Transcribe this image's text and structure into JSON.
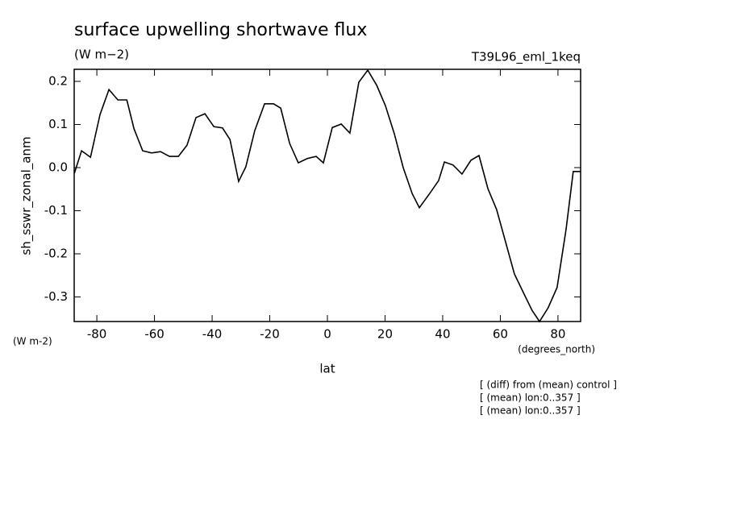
{
  "chart_data": {
    "type": "line",
    "title": "surface upwelling shortwave flux",
    "units": "(W m−2)",
    "run": "T39L96_eml_1keq",
    "y_label": "sh_sswr_zonal_anm",
    "y_units": "(W m-2)",
    "x_units": "(degrees_north)",
    "x_label": "lat",
    "notes": [
      "[ (diff) from (mean) control ]",
      "[ (mean) lon:0..357 ]",
      "[ (mean) lon:0..357 ]"
    ],
    "x": [
      -87.8,
      -85.3,
      -82.2,
      -78.9,
      -75.8,
      -72.7,
      -69.6,
      -67.1,
      -64.1,
      -61.0,
      -57.9,
      -54.8,
      -51.7,
      -48.7,
      -45.6,
      -42.5,
      -39.4,
      -36.4,
      -33.8,
      -30.8,
      -28.3,
      -25.2,
      -21.8,
      -18.7,
      -16.2,
      -13.1,
      -10.1,
      -7.0,
      -3.9,
      -1.4,
      1.7,
      4.8,
      7.8,
      10.9,
      14.0,
      17.1,
      20.1,
      23.2,
      26.3,
      29.4,
      31.9,
      35.5,
      38.6,
      40.6,
      43.6,
      46.7,
      49.8,
      52.6,
      55.7,
      58.7,
      61.8,
      64.9,
      68.0,
      71.0,
      73.6,
      76.6,
      79.7,
      82.8,
      85.3,
      87.8
    ],
    "series": [
      {
        "color": "#000000",
        "values": [
          -0.013,
          0.039,
          0.024,
          0.123,
          0.181,
          0.157,
          0.157,
          0.09,
          0.039,
          0.034,
          0.037,
          0.026,
          0.026,
          0.052,
          0.116,
          0.125,
          0.095,
          0.092,
          0.065,
          -0.032,
          0.002,
          0.086,
          0.148,
          0.148,
          0.138,
          0.056,
          0.011,
          0.021,
          0.026,
          0.011,
          0.093,
          0.101,
          0.08,
          0.198,
          0.226,
          0.191,
          0.144,
          0.079,
          0.0,
          -0.06,
          -0.093,
          -0.06,
          -0.03,
          0.013,
          0.006,
          -0.015,
          0.017,
          0.028,
          -0.049,
          -0.097,
          -0.172,
          -0.247,
          -0.29,
          -0.331,
          -0.357,
          -0.325,
          -0.278,
          -0.144,
          -0.009,
          -0.009
        ]
      }
    ],
    "xlim": [
      -87.86,
      87.86
    ],
    "ylim": [
      -0.357,
      0.228
    ],
    "xticks": [
      -80,
      -60,
      -40,
      -20,
      0,
      20,
      40,
      60,
      80
    ],
    "yticks": [
      0.2,
      0.1,
      {
        "value": 0,
        "label": "0.0"
      },
      -0.1,
      -0.2,
      -0.3
    ]
  }
}
